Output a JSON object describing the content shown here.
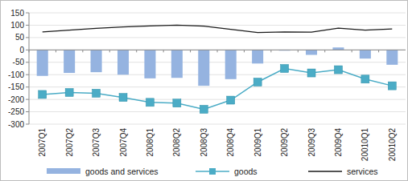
{
  "chart_data": {
    "type": "bar",
    "categories": [
      "2007Q1",
      "2007Q2",
      "2007Q3",
      "2007Q4",
      "2008Q1",
      "2008Q2",
      "2008Q3",
      "2008Q4",
      "2009Q1",
      "2009Q2",
      "2009Q3",
      "2009Q4",
      "20010Q1",
      "20010Q2"
    ],
    "series": [
      {
        "name": "goods and services",
        "type": "bar",
        "color": "#95b3e0",
        "values": [
          -105,
          -93,
          -90,
          -100,
          -115,
          -113,
          -145,
          -118,
          -55,
          -3,
          -20,
          10,
          -35,
          -60
        ]
      },
      {
        "name": "goods",
        "type": "line",
        "color": "#4bacc6",
        "marker": "square",
        "values": [
          -180,
          -172,
          -175,
          -192,
          -212,
          -215,
          -240,
          -203,
          -130,
          -75,
          -93,
          -80,
          -118,
          -145
        ]
      },
      {
        "name": "services",
        "type": "line",
        "color": "#1a1a1a",
        "marker": "none",
        "values": [
          73,
          80,
          87,
          93,
          97,
          100,
          96,
          83,
          70,
          73,
          72,
          88,
          80,
          85
        ]
      }
    ],
    "ylim": [
      -300,
      150
    ],
    "yticks": [
      -300,
      -250,
      -200,
      -150,
      -100,
      -50,
      0,
      50,
      100,
      150
    ],
    "grid": true,
    "legend": "bottom"
  }
}
